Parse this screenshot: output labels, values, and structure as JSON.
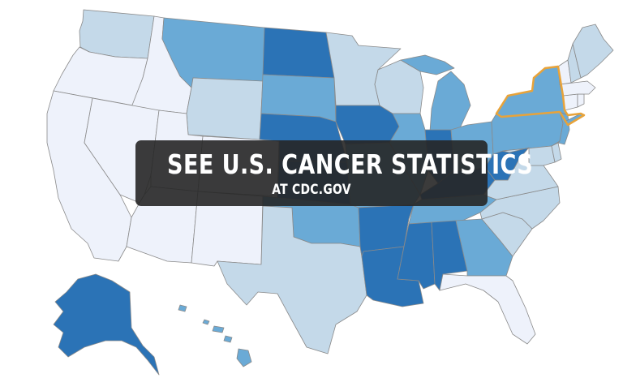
{
  "banner": {
    "title": "SEE U.S. CANCER STATISTICS",
    "subtitle": "AT CDC.GOV"
  },
  "legend_colors": {
    "level_1": "#eef2fb",
    "level_2": "#c4d9e9",
    "level_3": "#6aaad6",
    "level_4": "#2b73b6"
  },
  "highlight": {
    "state": "New York",
    "color": "#e8a33a"
  },
  "states": [
    {
      "name": "Washington",
      "level": 2
    },
    {
      "name": "Oregon",
      "level": 1
    },
    {
      "name": "California",
      "level": 1
    },
    {
      "name": "Idaho",
      "level": 1
    },
    {
      "name": "Nevada",
      "level": 1
    },
    {
      "name": "Montana",
      "level": 3
    },
    {
      "name": "Wyoming",
      "level": 2
    },
    {
      "name": "Utah",
      "level": 1
    },
    {
      "name": "Colorado",
      "level": 1
    },
    {
      "name": "Arizona",
      "level": 1
    },
    {
      "name": "New Mexico",
      "level": 1
    },
    {
      "name": "North Dakota",
      "level": 4
    },
    {
      "name": "South Dakota",
      "level": 3
    },
    {
      "name": "Nebraska",
      "level": 4
    },
    {
      "name": "Kansas",
      "level": 4
    },
    {
      "name": "Oklahoma",
      "level": 3
    },
    {
      "name": "Texas",
      "level": 2
    },
    {
      "name": "Minnesota",
      "level": 2
    },
    {
      "name": "Iowa",
      "level": 4
    },
    {
      "name": "Missouri",
      "level": 3
    },
    {
      "name": "Arkansas",
      "level": 4
    },
    {
      "name": "Louisiana",
      "level": 4
    },
    {
      "name": "Wisconsin",
      "level": 2
    },
    {
      "name": "Illinois",
      "level": 3
    },
    {
      "name": "Michigan",
      "level": 3
    },
    {
      "name": "Indiana",
      "level": 4
    },
    {
      "name": "Ohio",
      "level": 3
    },
    {
      "name": "Kentucky",
      "level": 4
    },
    {
      "name": "Tennessee",
      "level": 3
    },
    {
      "name": "Mississippi",
      "level": 4
    },
    {
      "name": "Alabama",
      "level": 4
    },
    {
      "name": "Georgia",
      "level": 3
    },
    {
      "name": "Florida",
      "level": 1
    },
    {
      "name": "South Carolina",
      "level": 2
    },
    {
      "name": "North Carolina",
      "level": 2
    },
    {
      "name": "Virginia",
      "level": 2
    },
    {
      "name": "West Virginia",
      "level": 4
    },
    {
      "name": "Pennsylvania",
      "level": 3
    },
    {
      "name": "New York",
      "level": 3
    },
    {
      "name": "New Jersey",
      "level": 3
    },
    {
      "name": "Delaware",
      "level": 2
    },
    {
      "name": "Maryland",
      "level": 2
    },
    {
      "name": "Connecticut",
      "level": 1
    },
    {
      "name": "Rhode Island",
      "level": 1
    },
    {
      "name": "Massachusetts",
      "level": 1
    },
    {
      "name": "Vermont",
      "level": 1
    },
    {
      "name": "New Hampshire",
      "level": 2
    },
    {
      "name": "Maine",
      "level": 2
    },
    {
      "name": "Alaska",
      "level": 4
    },
    {
      "name": "Hawaii",
      "level": 3
    }
  ]
}
